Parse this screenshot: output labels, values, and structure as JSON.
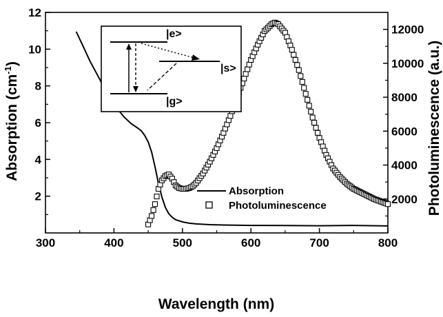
{
  "chart_data": {
    "type": "line",
    "title": "",
    "xlabel": "Wavelength (nm)",
    "ylabel_left": "Absorption (cm-1)",
    "ylabel_left_parts": {
      "base": "Absorption (cm",
      "sup": "-1",
      "close": ")"
    },
    "ylabel_right": "Photoluminescence (a.u.)",
    "xlim": [
      300,
      800
    ],
    "ylim_left": [
      0,
      12
    ],
    "ylim_right": [
      0,
      13000
    ],
    "xticks": [
      300,
      400,
      500,
      600,
      700,
      800
    ],
    "yticks_left": [
      2,
      4,
      6,
      8,
      10,
      12
    ],
    "yticks_right": [
      2000,
      4000,
      6000,
      8000,
      10000,
      12000
    ],
    "grid": false,
    "legend_position": "center-right",
    "series": [
      {
        "name": "Absorption",
        "axis": "left",
        "style": "solid-line",
        "x": [
          345,
          355,
          365,
          375,
          385,
          395,
          405,
          415,
          425,
          435,
          440,
          445,
          450,
          455,
          460,
          465,
          470,
          475,
          480,
          485,
          490,
          500,
          510,
          520,
          540,
          560,
          600,
          650,
          700,
          750,
          800
        ],
        "y": [
          10.95,
          10.15,
          9.35,
          8.65,
          7.95,
          7.3,
          6.75,
          6.3,
          5.95,
          5.7,
          5.55,
          5.3,
          4.95,
          4.4,
          3.6,
          2.7,
          1.95,
          1.4,
          1.05,
          0.85,
          0.72,
          0.6,
          0.53,
          0.49,
          0.45,
          0.43,
          0.41,
          0.4,
          0.39,
          0.41,
          0.38
        ]
      },
      {
        "name": "Photoluminescence",
        "axis": "right",
        "style": "open-square-markers",
        "x": [
          450,
          455,
          460,
          465,
          470,
          475,
          480,
          485,
          490,
          495,
          500,
          505,
          510,
          515,
          520,
          530,
          540,
          550,
          560,
          570,
          580,
          590,
          600,
          610,
          620,
          630,
          635,
          640,
          650,
          660,
          670,
          680,
          690,
          700,
          710,
          720,
          730,
          740,
          750,
          760,
          770,
          780,
          790,
          800
        ],
        "y": [
          500,
          1000,
          1700,
          2600,
          3100,
          3350,
          3450,
          3200,
          2800,
          2650,
          2600,
          2600,
          2650,
          2750,
          2950,
          3500,
          4200,
          5000,
          5900,
          6900,
          8000,
          9100,
          10200,
          11100,
          11900,
          12300,
          12400,
          12300,
          11800,
          10800,
          9600,
          8200,
          6800,
          5600,
          4600,
          3800,
          3300,
          2900,
          2600,
          2400,
          2200,
          2000,
          1850,
          1700
        ]
      }
    ],
    "legend": [
      {
        "label": "Absorption",
        "marker": "line"
      },
      {
        "label": "Photoluminescence",
        "marker": "square"
      }
    ]
  },
  "inset": {
    "state_e": "|e>",
    "state_s": "|s>",
    "state_g": "|g>"
  }
}
